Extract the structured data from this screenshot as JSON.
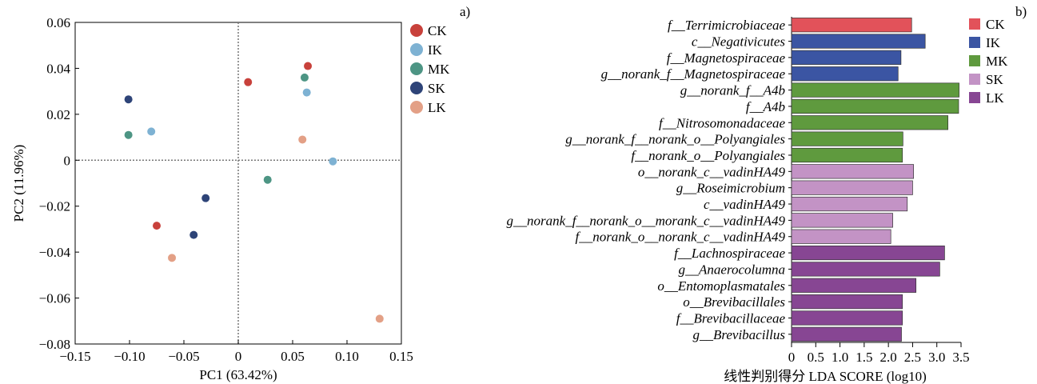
{
  "figure": {
    "panel_a_label": "a)",
    "panel_b_label": "b)"
  },
  "chart_data": [
    {
      "type": "scatter",
      "xlabel": "PC1 (63.42%)",
      "ylabel": "PC2 (11.96%)",
      "xlim": [
        -0.15,
        0.15
      ],
      "ylim": [
        -0.08,
        0.06
      ],
      "xticks": [
        -0.15,
        -0.1,
        -0.05,
        0,
        0.05,
        0.1,
        0.15
      ],
      "xtick_labels": [
        "−0.15",
        "−0.10",
        "−0.05",
        "0",
        "0.05",
        "0.10",
        "0.15"
      ],
      "yticks": [
        0.06,
        0.04,
        0.02,
        0,
        -0.02,
        -0.04,
        -0.06,
        -0.08
      ],
      "ytick_labels": [
        "0.06",
        "0.04",
        "0.02",
        "0",
        "−0.02",
        "−0.04",
        "−0.06",
        "−0.08"
      ],
      "reference_lines": {
        "x": 0,
        "y": 0,
        "style": "dotted"
      },
      "grid": false,
      "legend_position": "right, outside plot",
      "series": [
        {
          "name": "CK",
          "color": "#c8413b",
          "points": [
            [
              0.064,
              0.041
            ],
            [
              0.009,
              0.034
            ],
            [
              -0.075,
              -0.0285
            ]
          ]
        },
        {
          "name": "IK",
          "color": "#7eb2d3",
          "points": [
            [
              0.063,
              0.0295
            ],
            [
              -0.08,
              0.0125
            ],
            [
              0.087,
              -0.0005
            ]
          ]
        },
        {
          "name": "MK",
          "color": "#4d9584",
          "points": [
            [
              0.061,
              0.036
            ],
            [
              -0.101,
              0.011
            ],
            [
              0.027,
              -0.0085
            ]
          ]
        },
        {
          "name": "SK",
          "color": "#2e4478",
          "points": [
            [
              -0.101,
              0.0265
            ],
            [
              -0.03,
              -0.0165
            ],
            [
              -0.041,
              -0.0325
            ]
          ]
        },
        {
          "name": "LK",
          "color": "#e3a086",
          "points": [
            [
              0.059,
              0.009
            ],
            [
              -0.061,
              -0.0425
            ],
            [
              0.13,
              -0.069
            ]
          ]
        }
      ]
    },
    {
      "type": "bar",
      "orientation": "horizontal",
      "xlabel": "线性判别得分 LDA SCORE (log10)",
      "xlim": [
        0,
        3.5
      ],
      "xticks": [
        0,
        0.5,
        1,
        1.5,
        2,
        2.5,
        3,
        3.5
      ],
      "xtick_labels": [
        "0",
        "0.5",
        "1.0",
        "1.5",
        "2.0",
        "2.5",
        "3.0",
        "3.5"
      ],
      "legend_position": "top-right",
      "groups": [
        {
          "name": "CK",
          "color": "#e2525a"
        },
        {
          "name": "IK",
          "color": "#3b55a3"
        },
        {
          "name": "MK",
          "color": "#5f9a3e"
        },
        {
          "name": "SK",
          "color": "#c393c5"
        },
        {
          "name": "LK",
          "color": "#874693"
        }
      ],
      "bars": [
        {
          "label": "f__Terrimicrobiaceae",
          "value": 2.48,
          "group": "CK"
        },
        {
          "label": "c__Negativicutes",
          "value": 2.76,
          "group": "IK"
        },
        {
          "label": "f__Magnetospiraceae",
          "value": 2.26,
          "group": "IK"
        },
        {
          "label": "g__norank_f__Magnetospiraceae",
          "value": 2.2,
          "group": "IK"
        },
        {
          "label": "g__norank_f__A4b",
          "value": 3.46,
          "group": "MK"
        },
        {
          "label": "f__A4b",
          "value": 3.45,
          "group": "MK"
        },
        {
          "label": "f__Nitrosomonadaceae",
          "value": 3.23,
          "group": "MK"
        },
        {
          "label": "g__norank_f__norank_o__Polyangiales",
          "value": 2.3,
          "group": "MK"
        },
        {
          "label": "f__norank_o__Polyangiales",
          "value": 2.29,
          "group": "MK"
        },
        {
          "label": "o__norank_c__vadinHA49",
          "value": 2.52,
          "group": "SK"
        },
        {
          "label": "g__Roseimicrobium",
          "value": 2.5,
          "group": "SK"
        },
        {
          "label": "c__vadinHA49",
          "value": 2.39,
          "group": "SK"
        },
        {
          "label": "g__norank_f__norank_o__morank_c__vadinHA49",
          "value": 2.09,
          "group": "SK"
        },
        {
          "label": "f__norank_o__norank_c__vadinHA49",
          "value": 2.05,
          "group": "SK"
        },
        {
          "label": "f__Lachnospiraceae",
          "value": 3.16,
          "group": "LK"
        },
        {
          "label": "g__Anaerocolumna",
          "value": 3.06,
          "group": "LK"
        },
        {
          "label": "o__Entomoplasmatales",
          "value": 2.57,
          "group": "LK"
        },
        {
          "label": "o__Brevibacillales",
          "value": 2.29,
          "group": "LK"
        },
        {
          "label": "f__Brevibacillaceae",
          "value": 2.29,
          "group": "LK"
        },
        {
          "label": "g__Brevibacillus",
          "value": 2.27,
          "group": "LK"
        }
      ]
    }
  ]
}
